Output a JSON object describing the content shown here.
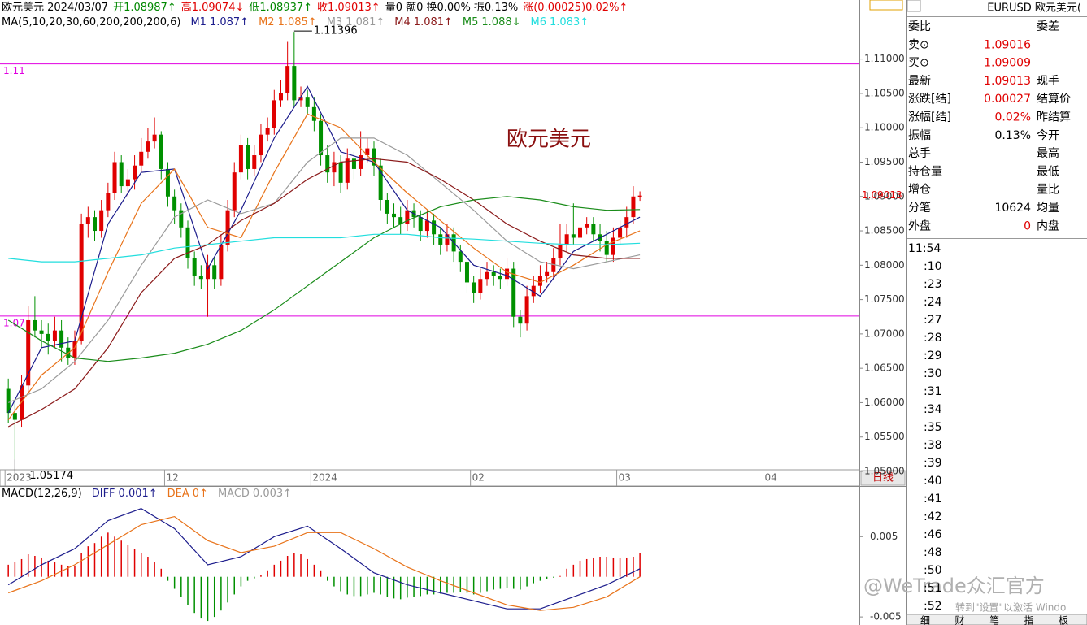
{
  "header": {
    "line1": [
      {
        "text": "欧元美元 2024/03/07",
        "color": "#000000"
      },
      {
        "text": "开1.08987↑",
        "color": "#008800"
      },
      {
        "text": "高1.09074↓",
        "color": "#e00000"
      },
      {
        "text": "低1.08937↑",
        "color": "#008800"
      },
      {
        "text": "收1.09013↑",
        "color": "#e00000"
      },
      {
        "text": "量0 额0 换0.00% 振0.13%",
        "color": "#000000"
      },
      {
        "text": "涨(0.00025)0.02%↑",
        "color": "#e00000"
      }
    ],
    "ma_title": "MA(5,10,20,30,60,200,200,200,6)"
  },
  "chart_data": [
    {
      "type": "candlestick",
      "watermark": "欧元美元",
      "up_color": "#e00000",
      "down_color": "#009000",
      "xlim": [
        -1,
        128
      ],
      "xticks": [
        {
          "value": 0,
          "label": "2023"
        },
        {
          "value": 24,
          "label": "12"
        },
        {
          "value": 46,
          "label": "2024"
        },
        {
          "value": 70,
          "label": "02"
        },
        {
          "value": 92,
          "label": "03"
        },
        {
          "value": 114,
          "label": "04"
        }
      ],
      "period": "日线",
      "ylim": [
        1.05,
        1.118
      ],
      "yticks": [
        {
          "value": 1.05,
          "label": "1.05000"
        },
        {
          "value": 1.055,
          "label": "1.05500"
        },
        {
          "value": 1.06,
          "label": "1.06000"
        },
        {
          "value": 1.065,
          "label": "1.06500"
        },
        {
          "value": 1.07,
          "label": "1.07000"
        },
        {
          "value": 1.075,
          "label": "1.07500"
        },
        {
          "value": 1.08,
          "label": "1.08000"
        },
        {
          "value": 1.085,
          "label": "1.08500"
        },
        {
          "value": 1.09,
          "label": "1.09000"
        },
        {
          "value": 1.095,
          "label": "1.09500"
        },
        {
          "value": 1.1,
          "label": "1.10000"
        },
        {
          "value": 1.105,
          "label": "1.10500"
        },
        {
          "value": 1.11,
          "label": "1.11000"
        }
      ],
      "hlines": [
        {
          "value": 1.1093,
          "label": "1.11",
          "color": "#e000e0"
        },
        {
          "value": 1.0726,
          "label": "1.07",
          "color": "#e000e0"
        }
      ],
      "open": [
        1.062,
        1.0585,
        1.0575,
        1.0625,
        1.072,
        1.0705,
        1.07,
        1.069,
        1.0705,
        1.068,
        1.0665,
        1.069,
        1.086,
        1.087,
        1.085,
        1.088,
        1.0905,
        1.095,
        1.0915,
        1.0925,
        1.0945,
        1.0965,
        1.098,
        1.099,
        1.094,
        1.09,
        1.088,
        1.0855,
        1.081,
        1.0785,
        1.078,
        1.08,
        1.078,
        1.083,
        1.088,
        1.0935,
        1.0975,
        1.094,
        1.096,
        1.099,
        1.1,
        1.104,
        1.105,
        1.109,
        1.104,
        1.1045,
        1.103,
        1.101,
        1.096,
        1.0935,
        1.095,
        1.092,
        1.0955,
        1.094,
        1.096,
        1.097,
        1.0945,
        1.0895,
        1.0875,
        1.087,
        1.086,
        1.088,
        1.087,
        1.085,
        1.0865,
        1.0845,
        1.083,
        1.0845,
        1.082,
        1.0805,
        1.0775,
        1.076,
        1.078,
        1.079,
        1.0785,
        1.078,
        1.0795,
        1.0725,
        1.0715,
        1.0755,
        1.077,
        1.0785,
        1.079,
        1.081,
        1.083,
        1.0845,
        1.084,
        1.0855,
        1.086,
        1.0845,
        1.0835,
        1.0815,
        1.084,
        1.0855,
        1.087,
        1.08987
      ],
      "high": [
        1.0635,
        1.06,
        1.064,
        1.074,
        1.0755,
        1.072,
        1.0715,
        1.0725,
        1.072,
        1.0695,
        1.0705,
        1.0875,
        1.0885,
        1.088,
        1.0895,
        1.092,
        1.0965,
        1.096,
        1.094,
        1.096,
        1.0985,
        1.1,
        1.1015,
        1.0995,
        1.095,
        1.091,
        1.089,
        1.0865,
        1.082,
        1.08,
        1.0815,
        1.081,
        1.0845,
        1.0895,
        1.095,
        1.099,
        1.0985,
        1.0975,
        1.1005,
        1.1015,
        1.1055,
        1.107,
        1.1125,
        1.11396,
        1.106,
        1.1055,
        1.1045,
        1.102,
        1.0975,
        1.0965,
        1.096,
        1.097,
        1.0965,
        1.0995,
        1.0985,
        1.098,
        1.0955,
        1.0905,
        1.089,
        1.0885,
        1.0895,
        1.089,
        1.088,
        1.088,
        1.0875,
        1.0855,
        1.086,
        1.0855,
        1.083,
        1.0815,
        1.0785,
        1.0795,
        1.0805,
        1.08,
        1.0795,
        1.081,
        1.0805,
        1.0735,
        1.077,
        1.0785,
        1.08,
        1.0805,
        1.0825,
        1.086,
        1.086,
        1.089,
        1.087,
        1.087,
        1.087,
        1.086,
        1.085,
        1.0855,
        1.0865,
        1.0885,
        1.0915,
        1.09074
      ],
      "low": [
        1.057,
        1.05174,
        1.0565,
        1.0615,
        1.0695,
        1.068,
        1.067,
        1.068,
        1.066,
        1.0655,
        1.0655,
        1.0685,
        1.084,
        1.0835,
        1.084,
        1.087,
        1.0895,
        1.0905,
        1.09,
        1.091,
        1.0935,
        1.0955,
        1.097,
        1.0925,
        1.0885,
        1.086,
        1.084,
        1.0795,
        1.077,
        1.0765,
        1.0725,
        1.0765,
        1.077,
        1.082,
        1.087,
        1.0925,
        1.0925,
        1.093,
        1.095,
        1.098,
        1.099,
        1.103,
        1.104,
        1.103,
        1.103,
        1.102,
        1.0995,
        1.0945,
        1.092,
        1.0915,
        1.0905,
        1.091,
        1.0925,
        1.093,
        1.095,
        1.093,
        1.088,
        1.086,
        1.0855,
        1.0845,
        1.085,
        1.0855,
        1.0835,
        1.084,
        1.083,
        1.0815,
        1.082,
        1.0805,
        1.079,
        1.076,
        1.0745,
        1.075,
        1.077,
        1.077,
        1.0765,
        1.077,
        1.071,
        1.0695,
        1.0705,
        1.0745,
        1.076,
        1.0775,
        1.078,
        1.08,
        1.082,
        1.083,
        1.083,
        1.0845,
        1.0835,
        1.082,
        1.0805,
        1.0805,
        1.083,
        1.084,
        1.086,
        1.08937
      ],
      "close": [
        1.0585,
        1.0575,
        1.0625,
        1.072,
        1.0705,
        1.07,
        1.069,
        1.0705,
        1.068,
        1.0665,
        1.069,
        1.086,
        1.087,
        1.085,
        1.088,
        1.0905,
        1.095,
        1.0915,
        1.0925,
        1.0945,
        1.0965,
        1.098,
        1.099,
        1.094,
        1.09,
        1.088,
        1.0855,
        1.081,
        1.0785,
        1.078,
        1.08,
        1.078,
        1.083,
        1.088,
        1.0935,
        1.0975,
        1.094,
        1.096,
        1.099,
        1.1,
        1.104,
        1.105,
        1.109,
        1.104,
        1.1045,
        1.103,
        1.101,
        1.096,
        1.0935,
        1.095,
        1.092,
        1.0955,
        1.094,
        1.096,
        1.097,
        1.0945,
        1.0895,
        1.0875,
        1.087,
        1.086,
        1.088,
        1.087,
        1.085,
        1.0865,
        1.0845,
        1.083,
        1.0845,
        1.082,
        1.0805,
        1.0775,
        1.076,
        1.078,
        1.079,
        1.0785,
        1.078,
        1.0795,
        1.0725,
        1.0715,
        1.0755,
        1.077,
        1.0785,
        1.079,
        1.081,
        1.083,
        1.0845,
        1.084,
        1.0855,
        1.086,
        1.0845,
        1.0835,
        1.0815,
        1.084,
        1.0855,
        1.087,
        1.09,
        1.09013
      ],
      "ma_x": [
        0,
        5,
        10,
        15,
        20,
        25,
        30,
        35,
        40,
        45,
        50,
        55,
        60,
        65,
        70,
        75,
        80,
        85,
        90,
        95
      ],
      "ma_series": [
        {
          "name": "M1",
          "current": "1.087↑",
          "color": "#1c1c8c",
          "values": [
            1.0585,
            1.068,
            1.069,
            1.086,
            1.0935,
            1.094,
            1.0795,
            1.088,
            1.0985,
            1.106,
            1.0965,
            1.095,
            1.088,
            1.0855,
            1.08,
            1.0785,
            1.0755,
            1.082,
            1.0845,
            1.087
          ]
        },
        {
          "name": "M2",
          "current": "1.085↑",
          "color": "#e8731a",
          "values": [
            1.0575,
            1.064,
            1.068,
            1.079,
            1.089,
            1.094,
            1.0855,
            1.084,
            1.0935,
            1.102,
            1.1,
            1.095,
            1.0905,
            1.0865,
            1.0825,
            1.079,
            1.0775,
            1.08,
            1.083,
            1.085
          ]
        },
        {
          "name": "M3",
          "current": "1.081↑",
          "color": "#9a9a9a",
          "values": [
            1.06,
            1.062,
            1.066,
            1.072,
            1.08,
            1.087,
            1.0895,
            1.0875,
            1.089,
            1.095,
            1.0985,
            1.0985,
            1.096,
            1.092,
            1.088,
            1.0835,
            1.0805,
            1.0795,
            1.0805,
            1.0815
          ]
        },
        {
          "name": "M4",
          "current": "1.081↑",
          "color": "#8b1a1a",
          "values": [
            1.0565,
            1.059,
            1.062,
            1.068,
            1.076,
            1.081,
            1.083,
            1.0865,
            1.089,
            1.0925,
            1.095,
            1.0955,
            1.095,
            1.0925,
            1.0895,
            1.086,
            1.0835,
            1.0815,
            1.081,
            1.081
          ]
        },
        {
          "name": "M5",
          "current": "1.088↓",
          "color": "#1a8c1a",
          "values": [
            1.072,
            1.069,
            1.0665,
            1.066,
            1.0665,
            1.0672,
            1.0685,
            1.0705,
            1.0735,
            1.077,
            1.0805,
            1.084,
            1.0865,
            1.0885,
            1.0895,
            1.09,
            1.0895,
            1.0885,
            1.088,
            1.0881
          ]
        },
        {
          "name": "M6",
          "current": "1.083↑",
          "color": "#22dede",
          "values": [
            1.081,
            1.0805,
            1.0805,
            1.081,
            1.0815,
            1.0825,
            1.083,
            1.0835,
            1.084,
            1.084,
            1.084,
            1.0845,
            1.0845,
            1.084,
            1.0838,
            1.0835,
            1.0832,
            1.083,
            1.083,
            1.0832
          ]
        }
      ]
    },
    {
      "type": "macd",
      "title": "MACD(12,26,9)",
      "ylim": [
        -0.006,
        0.0112
      ],
      "yticks": [
        0.005,
        -0.005
      ],
      "x": [
        0,
        5,
        10,
        15,
        20,
        25,
        30,
        35,
        40,
        45,
        50,
        55,
        60,
        65,
        70,
        75,
        80,
        85,
        90,
        95
      ],
      "series": [
        {
          "name": "DIFF",
          "current": "0.001↑",
          "color": "#1c1c8c",
          "values": [
            -0.001,
            0.0015,
            0.0035,
            0.007,
            0.0085,
            0.006,
            0.0015,
            0.0025,
            0.005,
            0.0063,
            0.0035,
            0.0005,
            -0.001,
            -0.002,
            -0.003,
            -0.004,
            -0.004,
            -0.0025,
            -0.001,
            0.001
          ]
        },
        {
          "name": "DEA",
          "current": "0↑",
          "color": "#e8731a",
          "values": [
            -0.002,
            -0.0005,
            0.0015,
            0.004,
            0.0065,
            0.0075,
            0.0045,
            0.003,
            0.0038,
            0.0055,
            0.0055,
            0.0035,
            0.0012,
            -0.0005,
            -0.002,
            -0.0035,
            -0.0042,
            -0.0038,
            -0.0025,
            0.0
          ]
        }
      ],
      "histogram": {
        "name": "MACD",
        "current": "0.003↑",
        "color": "#9a9a9a",
        "up_color": "#e00000",
        "down_color": "#009000",
        "values": [
          0.0015,
          0.0018,
          0.0022,
          0.0028,
          0.0026,
          0.0024,
          0.002,
          0.0018,
          0.0015,
          0.0013,
          0.0014,
          0.003,
          0.0038,
          0.0042,
          0.005,
          0.0055,
          0.005,
          0.0045,
          0.004,
          0.0035,
          0.003,
          0.0025,
          0.0018,
          0.001,
          -0.0005,
          -0.0015,
          -0.0025,
          -0.0035,
          -0.0045,
          -0.0052,
          -0.0055,
          -0.005,
          -0.0042,
          -0.0032,
          -0.0022,
          -0.0012,
          -0.0005,
          -0.0002,
          0.0002,
          0.0008,
          0.0015,
          0.002,
          0.0026,
          0.003,
          0.0028,
          0.0022,
          0.0015,
          0.0008,
          -0.0005,
          -0.0012,
          -0.0018,
          -0.0022,
          -0.0024,
          -0.0024,
          -0.0022,
          -0.002,
          -0.0022,
          -0.0025,
          -0.0027,
          -0.0028,
          -0.0026,
          -0.0025,
          -0.0024,
          -0.0022,
          -0.0022,
          -0.0021,
          -0.002,
          -0.002,
          -0.0019,
          -0.002,
          -0.0022,
          -0.002,
          -0.0018,
          -0.0016,
          -0.0015,
          -0.0014,
          -0.0015,
          -0.0016,
          -0.0012,
          -0.0008,
          -0.0005,
          -0.0003,
          -0.0001,
          0.0001,
          0.001,
          0.0015,
          0.002,
          0.0022,
          0.0024,
          0.0025,
          0.0025,
          0.0024,
          0.0023,
          0.0024,
          0.0025,
          0.003
        ]
      }
    }
  ],
  "quote": {
    "title": "EURUSD 欧元美元(",
    "rows": [
      {
        "label": "委比",
        "right": "委差"
      },
      {
        "label": "卖⊙",
        "value": "1.09016",
        "value_color": "#e00000"
      },
      {
        "label": "买⊙",
        "value": "1.09009",
        "value_color": "#e00000"
      },
      {
        "label": "最新",
        "value": "1.09013",
        "value_color": "#e00000",
        "right": "现手"
      },
      {
        "label": "涨跌[结]",
        "value": "0.00027",
        "value_color": "#e00000",
        "right": "结算价"
      },
      {
        "label": "涨幅[结]",
        "value": "0.02%",
        "value_color": "#e00000",
        "right": "昨结算"
      },
      {
        "label": "振幅",
        "value": "0.13%",
        "value_color": "#000000",
        "right": "今开"
      },
      {
        "label": "总手",
        "right": "最高"
      },
      {
        "label": "持仓量",
        "right": "最低"
      },
      {
        "label": "增仓",
        "right": "量比"
      },
      {
        "label": "分笔",
        "value": "10624",
        "value_color": "#000000",
        "right": "均量"
      },
      {
        "label": "外盘",
        "value": "0",
        "value_color": "#e00000",
        "right": "内盘"
      }
    ],
    "times": [
      "11:54",
      ":10",
      ":23",
      ":24",
      ":27",
      ":28",
      ":29",
      ":30",
      ":31",
      ":34",
      ":35",
      ":38",
      ":39",
      ":40",
      ":41",
      ":42",
      ":46",
      ":48",
      ":50",
      ":51",
      ":52"
    ],
    "tabs": [
      "细",
      "财",
      "笔",
      "指",
      "板"
    ]
  },
  "overlay": {
    "brand": "@WeTrade众汇官方",
    "activation": "转到\"设置\"以激活 Windo"
  }
}
